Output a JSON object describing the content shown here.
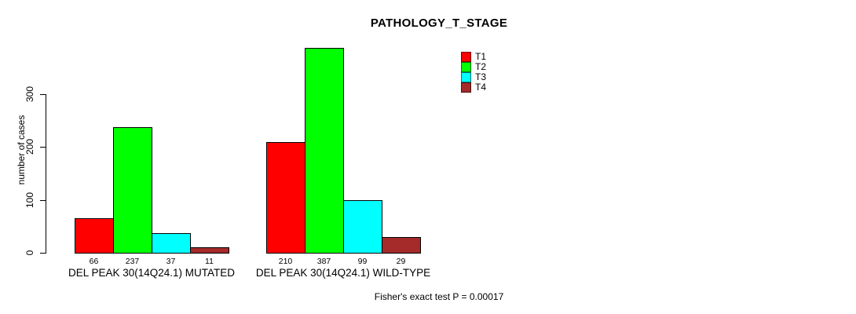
{
  "figure": {
    "background": "#FFFFFF",
    "text_color": "#000000"
  },
  "chart_data": {
    "type": "bar",
    "title": "PATHOLOGY_T_STAGE",
    "ylabel": "number of cases",
    "xlabel": "",
    "ylim": [
      0,
      300
    ],
    "yticks": [
      0,
      100,
      200,
      300
    ],
    "grid": false,
    "legend_position": "top-right",
    "categories": [
      "DEL PEAK 30(14Q24.1) MUTATED",
      "DEL PEAK 30(14Q24.1) WILD-TYPE"
    ],
    "series": [
      {
        "name": "T1",
        "color": "#FF0000",
        "values": [
          66,
          210
        ]
      },
      {
        "name": "T2",
        "color": "#00FF00",
        "values": [
          237,
          387
        ]
      },
      {
        "name": "T3",
        "color": "#00FFFF",
        "values": [
          37,
          99
        ]
      },
      {
        "name": "T4",
        "color": "#A52A2A",
        "values": [
          11,
          29
        ]
      }
    ],
    "bar_value_labels_shown": true,
    "annotation": "Fisher's exact test P = 0.00017"
  }
}
